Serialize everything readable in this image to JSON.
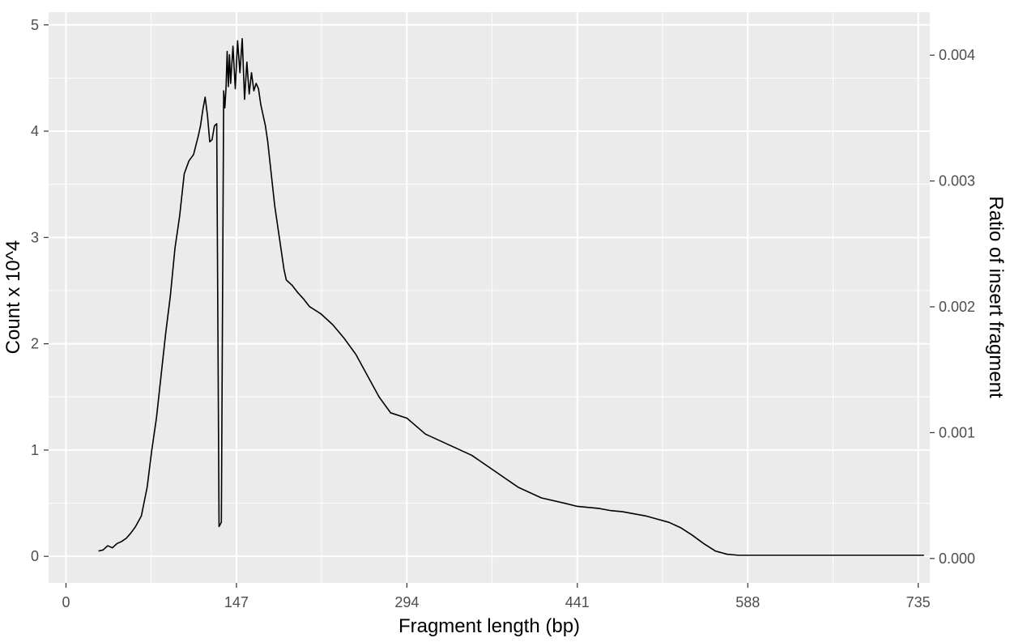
{
  "chart_data": {
    "type": "line",
    "title": "",
    "xlabel": "Fragment length (bp)",
    "ylabel": "Count x 10^4",
    "y2label": "Ratio of insert fragment",
    "xlim": [
      -15,
      745
    ],
    "ylim": [
      -0.25,
      5.12
    ],
    "y2lim": [
      -0.000194,
      0.004342
    ],
    "x_ticks": [
      0,
      147,
      294,
      441,
      588,
      735
    ],
    "x_minor_ticks": [
      73.5,
      220.5,
      367.5,
      514.5,
      661.5
    ],
    "y_ticks": [
      0,
      1,
      2,
      3,
      4,
      5
    ],
    "y_minor_ticks": [
      0.5,
      1.5,
      2.5,
      3.5,
      4.5
    ],
    "y2_ticks": [
      0.0,
      0.001,
      0.002,
      0.003,
      0.004
    ],
    "y2_tick_labels": [
      "0.000",
      "0.001",
      "0.002",
      "0.003",
      "0.004"
    ],
    "grid": true,
    "panel_background": "#ebebeb",
    "grid_color": "#ffffff",
    "line_color": "#000000",
    "series": [
      {
        "x": [
          28,
          32,
          36,
          40,
          44,
          48,
          52,
          56,
          60,
          65,
          70,
          74,
          78,
          82,
          86,
          90,
          94,
          98,
          102,
          106,
          110,
          114,
          116,
          118,
          120,
          122,
          124,
          126,
          128,
          130,
          132,
          134,
          136,
          137,
          138,
          139,
          140,
          141,
          142,
          144,
          146,
          148,
          150,
          152,
          154,
          156,
          158,
          160,
          162,
          164,
          166,
          168,
          170,
          172,
          174,
          176,
          178,
          180,
          182,
          184,
          186,
          188,
          190,
          195,
          200,
          205,
          210,
          220,
          230,
          240,
          250,
          260,
          270,
          280,
          294,
          310,
          330,
          350,
          370,
          390,
          410,
          430,
          441,
          460,
          470,
          480,
          490,
          500,
          510,
          520,
          530,
          540,
          550,
          560,
          570,
          580,
          590,
          600,
          610,
          620,
          630,
          640,
          650,
          660,
          680,
          700,
          720,
          740
        ],
        "values": [
          0.05,
          0.06,
          0.1,
          0.08,
          0.12,
          0.14,
          0.17,
          0.22,
          0.28,
          0.38,
          0.65,
          1.0,
          1.3,
          1.7,
          2.1,
          2.45,
          2.9,
          3.2,
          3.6,
          3.72,
          3.78,
          3.95,
          4.05,
          4.2,
          4.32,
          4.15,
          3.9,
          3.92,
          4.05,
          4.07,
          0.28,
          0.32,
          4.38,
          4.22,
          4.4,
          4.75,
          4.42,
          4.72,
          4.45,
          4.8,
          4.4,
          4.85,
          4.55,
          4.87,
          4.3,
          4.65,
          4.35,
          4.55,
          4.38,
          4.45,
          4.4,
          4.25,
          4.15,
          4.05,
          3.9,
          3.7,
          3.5,
          3.3,
          3.15,
          3.0,
          2.85,
          2.7,
          2.6,
          2.55,
          2.48,
          2.42,
          2.35,
          2.28,
          2.18,
          2.05,
          1.9,
          1.7,
          1.5,
          1.35,
          1.3,
          1.15,
          1.05,
          0.95,
          0.8,
          0.65,
          0.55,
          0.5,
          0.47,
          0.45,
          0.43,
          0.42,
          0.4,
          0.38,
          0.35,
          0.32,
          0.27,
          0.2,
          0.12,
          0.05,
          0.02,
          0.01,
          0.01,
          0.01,
          0.01,
          0.01,
          0.01,
          0.01,
          0.01,
          0.01,
          0.01,
          0.01,
          0.01,
          0.01
        ]
      }
    ]
  }
}
